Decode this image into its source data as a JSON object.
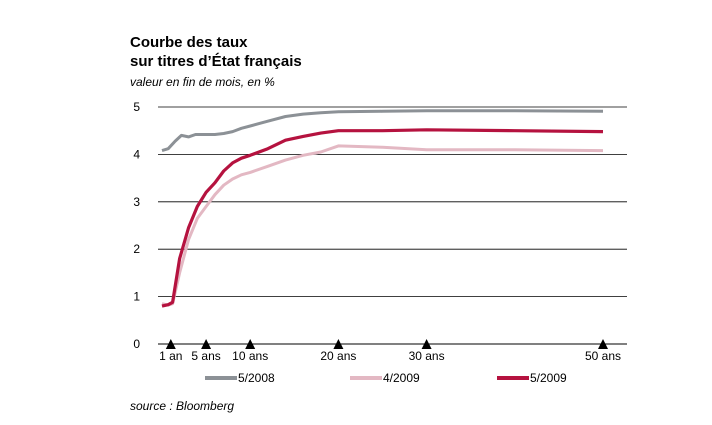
{
  "header": {
    "title_line1": "Courbe des taux",
    "title_line2": "sur titres d’État français",
    "subtitle": "valeur en fin de mois, en %"
  },
  "footer": {
    "source": "source : Bloomberg"
  },
  "chart_data": {
    "type": "line",
    "title": "Courbe des taux sur titres d’État français",
    "subtitle": "valeur en fin de mois, en %",
    "xlabel": "",
    "ylabel": "",
    "xlim": [
      0,
      50
    ],
    "ylim": [
      0,
      5
    ],
    "y_ticks": [
      0,
      1,
      2,
      3,
      4,
      5
    ],
    "x_ticks": [
      {
        "x": 1,
        "label": "1 an"
      },
      {
        "x": 5,
        "label": "5 ans"
      },
      {
        "x": 10,
        "label": "10 ans"
      },
      {
        "x": 20,
        "label": "20 ans"
      },
      {
        "x": 30,
        "label": "30 ans"
      },
      {
        "x": 50,
        "label": "50 ans"
      }
    ],
    "grid": "horizontal",
    "legend_position": "bottom",
    "series": [
      {
        "name": "5/2008",
        "color": "#8c9196",
        "points": [
          [
            0.0,
            4.08
          ],
          [
            0.7,
            4.12
          ],
          [
            1.5,
            4.28
          ],
          [
            2.2,
            4.4
          ],
          [
            3.0,
            4.37
          ],
          [
            3.8,
            4.42
          ],
          [
            5,
            4.42
          ],
          [
            6,
            4.42
          ],
          [
            7,
            4.44
          ],
          [
            8,
            4.48
          ],
          [
            9,
            4.55
          ],
          [
            10,
            4.6
          ],
          [
            11,
            4.65
          ],
          [
            12,
            4.7
          ],
          [
            14,
            4.8
          ],
          [
            16,
            4.85
          ],
          [
            18,
            4.88
          ],
          [
            20,
            4.9
          ],
          [
            25,
            4.91
          ],
          [
            30,
            4.92
          ],
          [
            40,
            4.92
          ],
          [
            50,
            4.91
          ]
        ]
      },
      {
        "name": "4/2009",
        "color": "#e3b8c3",
        "points": [
          [
            0.0,
            0.85
          ],
          [
            0.7,
            0.82
          ],
          [
            1.2,
            0.85
          ],
          [
            2.0,
            1.5
          ],
          [
            3.0,
            2.2
          ],
          [
            4.0,
            2.65
          ],
          [
            5,
            2.9
          ],
          [
            6,
            3.15
          ],
          [
            7,
            3.35
          ],
          [
            8,
            3.48
          ],
          [
            9,
            3.57
          ],
          [
            10,
            3.62
          ],
          [
            12,
            3.75
          ],
          [
            14,
            3.88
          ],
          [
            16,
            3.98
          ],
          [
            18,
            4.05
          ],
          [
            20,
            4.18
          ],
          [
            25,
            4.15
          ],
          [
            30,
            4.1
          ],
          [
            40,
            4.1
          ],
          [
            50,
            4.08
          ]
        ]
      },
      {
        "name": "5/2009",
        "color": "#b5123f",
        "points": [
          [
            0.0,
            0.8
          ],
          [
            0.7,
            0.83
          ],
          [
            1.2,
            0.88
          ],
          [
            2.0,
            1.8
          ],
          [
            3.0,
            2.45
          ],
          [
            4.0,
            2.9
          ],
          [
            5,
            3.2
          ],
          [
            6,
            3.4
          ],
          [
            7,
            3.65
          ],
          [
            8,
            3.82
          ],
          [
            9,
            3.92
          ],
          [
            10,
            3.98
          ],
          [
            12,
            4.12
          ],
          [
            14,
            4.3
          ],
          [
            16,
            4.38
          ],
          [
            18,
            4.45
          ],
          [
            20,
            4.5
          ],
          [
            25,
            4.5
          ],
          [
            30,
            4.52
          ],
          [
            40,
            4.5
          ],
          [
            50,
            4.48
          ]
        ]
      }
    ]
  }
}
